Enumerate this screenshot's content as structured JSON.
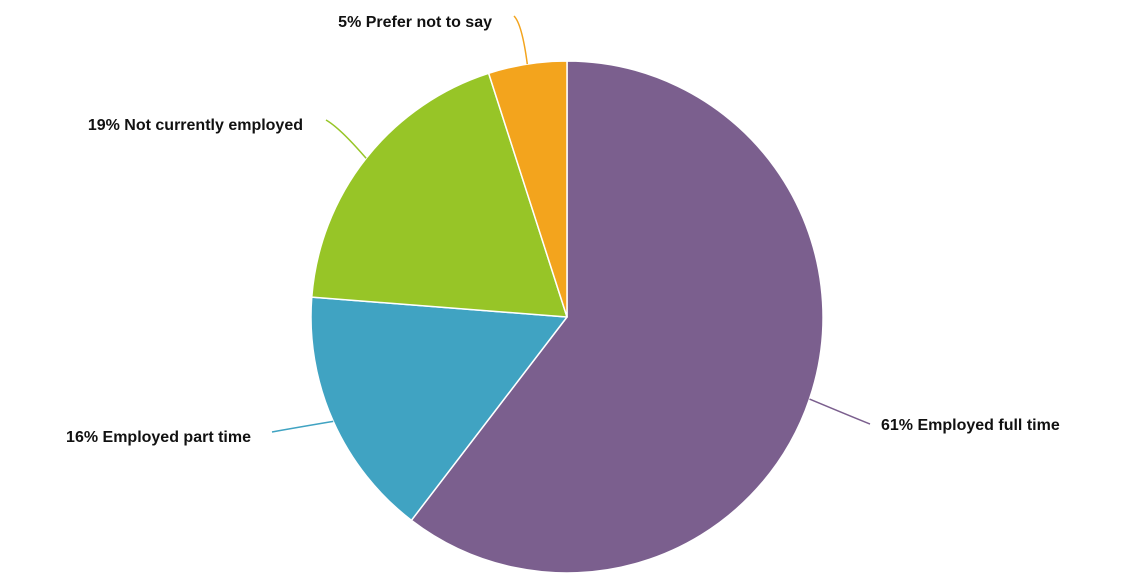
{
  "chart_data": {
    "type": "pie",
    "title": "",
    "slices": [
      {
        "label": "Employed full time",
        "value": 61,
        "display": "61% Employed full time",
        "color": "#7b5f8e"
      },
      {
        "label": "Employed part time",
        "value": 16,
        "display": "16% Employed part time",
        "color": "#40a3c2"
      },
      {
        "label": "Not currently employed",
        "value": 19,
        "display": "19% Not currently employed",
        "color": "#97c527"
      },
      {
        "label": "Prefer not to say",
        "value": 5,
        "display": "5% Prefer not to say",
        "color": "#f3a41d"
      }
    ],
    "start_angle": "12 o'clock",
    "direction": "clockwise",
    "legend": "none",
    "labels": "outside with leader lines"
  }
}
